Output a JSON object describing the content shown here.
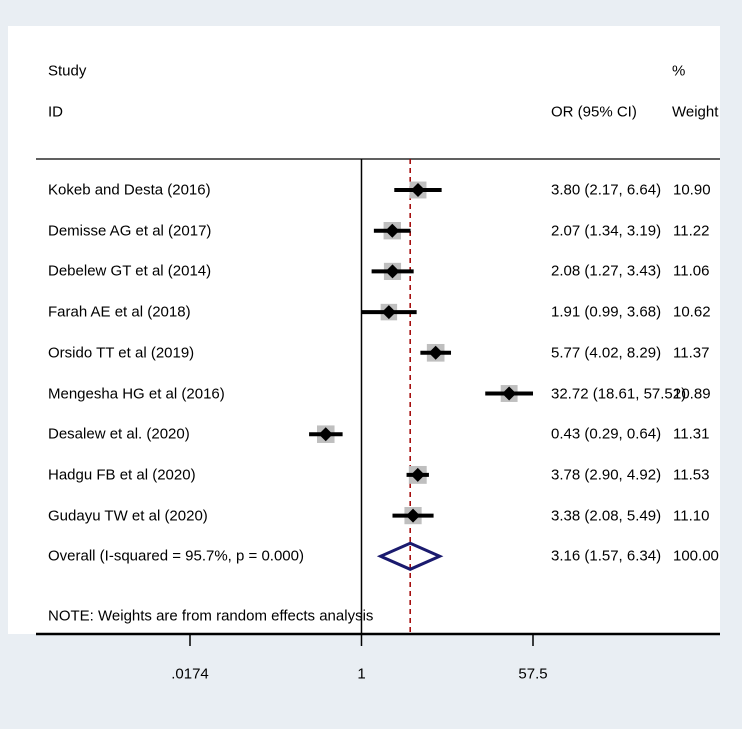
{
  "header": {
    "study_line1": "Study",
    "study_line2": "ID",
    "or_header": "OR (95% CI)",
    "weight_line1": "%",
    "weight_line2": "Weight"
  },
  "note": "NOTE: Weights are from random effects analysis",
  "colors": {
    "background": "#e9eef3",
    "panel": "#ffffff",
    "marker": "#000000",
    "weight_box": "#bfbfbf",
    "overall_diamond": "#1a1a6e",
    "reference_line": "#a00000"
  },
  "chart_data": {
    "type": "forest",
    "x_scale": "log",
    "x_ticks": [
      {
        "value": 0.0174,
        "label": ".0174"
      },
      {
        "value": 1,
        "label": "1"
      },
      {
        "value": 57.5,
        "label": "57.5"
      }
    ],
    "xlim": [
      0.0174,
      57.5
    ],
    "null_line": 1,
    "pooled_line": 3.16,
    "studies": [
      {
        "name": "Kokeb and Desta  (2016)",
        "or": 3.8,
        "lo": 2.17,
        "hi": 6.64,
        "ci_text": "3.80 (2.17, 6.64)",
        "weight": "10.90"
      },
      {
        "name": "Demisse AG et al (2017)",
        "or": 2.07,
        "lo": 1.34,
        "hi": 3.19,
        "ci_text": "2.07 (1.34, 3.19)",
        "weight": "11.22"
      },
      {
        "name": "Debelew GT et al  (2014)",
        "or": 2.08,
        "lo": 1.27,
        "hi": 3.43,
        "ci_text": "2.08 (1.27, 3.43)",
        "weight": "11.06"
      },
      {
        "name": "Farah AE et al  (2018)",
        "or": 1.91,
        "lo": 0.99,
        "hi": 3.68,
        "ci_text": "1.91 (0.99, 3.68)",
        "weight": "10.62"
      },
      {
        "name": "Orsido TT et al  (2019)",
        "or": 5.77,
        "lo": 4.02,
        "hi": 8.29,
        "ci_text": "5.77 (4.02, 8.29)",
        "weight": "11.37"
      },
      {
        "name": "Mengesha HG et al  (2016)",
        "or": 32.72,
        "lo": 18.61,
        "hi": 57.52,
        "ci_text": "32.72 (18.61, 57.52)",
        "weight": "10.89"
      },
      {
        "name": "Desalew et al. (2020)",
        "or": 0.43,
        "lo": 0.29,
        "hi": 0.64,
        "ci_text": "0.43 (0.29, 0.64)",
        "weight": "11.31"
      },
      {
        "name": "Hadgu FB et al (2020)",
        "or": 3.78,
        "lo": 2.9,
        "hi": 4.92,
        "ci_text": "3.78 (2.90, 4.92)",
        "weight": "11.53"
      },
      {
        "name": "Gudayu TW et al (2020)",
        "or": 3.38,
        "lo": 2.08,
        "hi": 5.49,
        "ci_text": "3.38 (2.08, 5.49)",
        "weight": "11.10"
      }
    ],
    "overall": {
      "name": "Overall  (I-squared = 95.7%, p = 0.000)",
      "or": 3.16,
      "lo": 1.57,
      "hi": 6.34,
      "ci_text": "3.16 (1.57, 6.34)",
      "weight": "100.00"
    }
  }
}
